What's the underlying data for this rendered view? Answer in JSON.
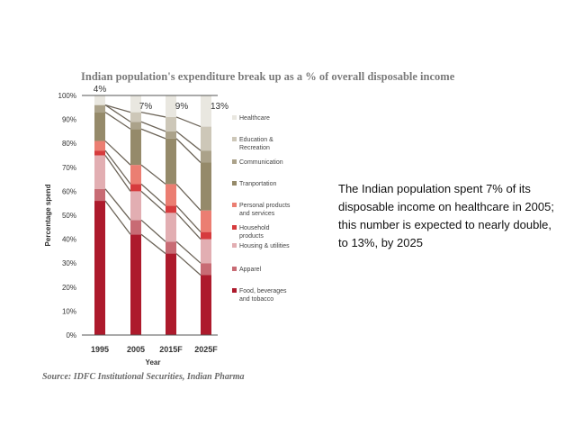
{
  "chart_data": {
    "type": "bar",
    "stacked": true,
    "title": "Indian population's expenditure break up as a % of overall disposable income",
    "xlabel": "Year",
    "ylabel": "Percentage spend",
    "ylim": [
      0,
      100
    ],
    "yticks": [
      "0%",
      "10%",
      "20%",
      "30%",
      "40%",
      "50%",
      "60%",
      "70%",
      "80%",
      "90%",
      "100%"
    ],
    "categories": [
      "1995",
      "2005",
      "2015F",
      "2025F"
    ],
    "series": [
      {
        "name": "Food, beverages and tobacco",
        "legend_lines": [
          "Food, beverages",
          "and tobacco"
        ],
        "color": "#ad1a2c",
        "values": [
          56,
          42,
          34,
          25
        ]
      },
      {
        "name": "Apparel",
        "legend_lines": [
          "Apparel"
        ],
        "color": "#c86b74",
        "values": [
          5,
          6,
          5,
          5
        ]
      },
      {
        "name": "Housing & utilities",
        "legend_lines": [
          "Housing & utilities"
        ],
        "color": "#e2aeb2",
        "values": [
          14,
          12,
          12,
          10
        ]
      },
      {
        "name": "Household products",
        "legend_lines": [
          "Household",
          "products"
        ],
        "color": "#d63b3d",
        "values": [
          2,
          3,
          3,
          3
        ]
      },
      {
        "name": "Personal products and services",
        "legend_lines": [
          "Personal products",
          "and services"
        ],
        "color": "#eb7e72",
        "values": [
          4,
          8,
          9,
          9
        ]
      },
      {
        "name": "Transportation",
        "legend_lines": [
          "Tranportation"
        ],
        "color": "#958a6a",
        "values": [
          12,
          15,
          19,
          20
        ]
      },
      {
        "name": "Communication",
        "legend_lines": [
          "Communication"
        ],
        "color": "#aba28a",
        "values": [
          3,
          3,
          3,
          5
        ]
      },
      {
        "name": "Education & Recreation",
        "legend_lines": [
          "Education &",
          "Recreation"
        ],
        "color": "#cdc7b8",
        "values": [
          0,
          4,
          6,
          10
        ]
      },
      {
        "name": "Healthcare",
        "legend_lines": [
          "Healthcare"
        ],
        "color": "#e9e7e0",
        "values": [
          4,
          7,
          9,
          13
        ]
      }
    ],
    "healthcare_labels": [
      "4%",
      "7%",
      "9%",
      "13%"
    ],
    "legend_position": "right"
  },
  "source": "Source: IDFC Institutional Securities, Indian Pharma",
  "annotation": "The Indian population spent 7% of its disposable income on healthcare in 2005; this number is expected to nearly double, to 13%, by 2025"
}
